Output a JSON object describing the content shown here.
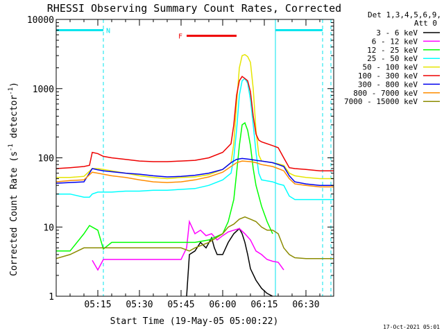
{
  "chart_data": {
    "type": "line",
    "title": "RHESSI Observing Summary Count Rates, Corrected",
    "xlabel": "Start Time (19-May-05 05:00:22)",
    "ylabel": "Corrected Count Rate (s",
    "ylabel_sup": "-1",
    "ylabel_mid": " detector",
    "ylabel_end": ")",
    "y_scale": "log",
    "ylim": [
      1,
      10000
    ],
    "xlim_minutes": [
      0,
      100
    ],
    "y_ticks": [
      1,
      10,
      100,
      1000,
      10000
    ],
    "y_tick_labels": [
      "1",
      "10",
      "100",
      "1000",
      "10000"
    ],
    "x_ticks_minutes": [
      15,
      30,
      45,
      60,
      75,
      90
    ],
    "x_tick_labels": [
      "05:15",
      "05:30",
      "05:45",
      "06:00",
      "06:15",
      "06:30"
    ],
    "legend_header": [
      "Det 1,3,4,5,6,9,",
      "Att 0"
    ],
    "legend_position": "right, outside plot",
    "footer_timestamp": "17-Oct-2021 05:01",
    "flags": [
      {
        "label": "N",
        "start_min": 0,
        "end_min": 17,
        "color": "#00e5ee",
        "y_value": 7000
      },
      {
        "label": "",
        "start_min": 79,
        "end_min": 96,
        "color": "#00e5ee",
        "y_value": 7000
      },
      {
        "label": "F",
        "start_min": 47,
        "end_min": 65,
        "color": "#ee0000",
        "y_value": 5800
      }
    ],
    "vlines_dashed_minutes": [
      17,
      96
    ],
    "vlines_solid_minutes": [
      79
    ],
    "series": [
      {
        "name": "3 - 6 keV",
        "color": "#000000",
        "x": [
          47,
          48,
          50,
          52,
          54,
          56,
          57,
          58,
          60,
          62,
          64,
          66,
          67,
          68,
          69,
          70,
          72,
          74,
          76,
          78
        ],
        "y": [
          1,
          4,
          4.5,
          6,
          5,
          7,
          5,
          4,
          4,
          6,
          8,
          9.5,
          8,
          6,
          4,
          2.5,
          1.7,
          1.3,
          1.1,
          1
        ]
      },
      {
        "name": "6 - 12 keV",
        "color": "#ff00ff",
        "x": [
          13,
          15,
          17,
          20,
          25,
          30,
          35,
          40,
          45,
          47,
          48,
          50,
          52,
          54,
          56,
          58,
          60,
          62,
          64,
          66,
          68,
          70,
          72,
          74,
          76,
          78,
          80,
          82
        ],
        "y": [
          3.3,
          2.4,
          3.4,
          3.4,
          3.4,
          3.4,
          3.4,
          3.4,
          3.4,
          5,
          12,
          8,
          9,
          7.5,
          8,
          6.5,
          7.5,
          8.5,
          9,
          9.5,
          8,
          6.5,
          4.5,
          4,
          3.4,
          3.2,
          3.1,
          2.4
        ]
      },
      {
        "name": "12 - 25 keV",
        "color": "#00ff00",
        "x": [
          0,
          5,
          10,
          12,
          15,
          17,
          20,
          25,
          30,
          35,
          40,
          45,
          48,
          50,
          55,
          60,
          62,
          64,
          65,
          66,
          67,
          68,
          69,
          70,
          71,
          72,
          74,
          76,
          78
        ],
        "y": [
          4.5,
          4.5,
          8,
          10.5,
          9,
          4.8,
          6,
          6,
          6,
          6,
          6,
          6,
          6,
          6,
          6.5,
          8,
          12,
          25,
          60,
          150,
          300,
          320,
          250,
          150,
          70,
          40,
          20,
          12,
          8
        ]
      },
      {
        "name": "25 - 50 keV",
        "color": "#00ffff",
        "x": [
          0,
          5,
          10,
          12,
          13,
          15,
          17,
          20,
          25,
          30,
          35,
          40,
          45,
          50,
          55,
          60,
          63,
          64,
          65,
          66,
          67,
          68,
          69,
          70,
          71,
          72,
          73,
          74,
          78,
          80,
          82,
          84,
          86,
          90,
          95,
          100
        ],
        "y": [
          30,
          30,
          27,
          27,
          30,
          32,
          32,
          32,
          33,
          33,
          34,
          34,
          35,
          36,
          40,
          48,
          60,
          100,
          250,
          800,
          1300,
          1400,
          1200,
          700,
          300,
          120,
          60,
          48,
          45,
          42,
          40,
          28,
          25,
          25,
          25,
          25
        ]
      },
      {
        "name": "50 - 100 keV",
        "color": "#e5e500",
        "x": [
          0,
          5,
          10,
          13,
          15,
          17,
          20,
          25,
          30,
          35,
          40,
          45,
          50,
          55,
          60,
          63,
          64,
          65,
          66,
          67,
          68,
          69,
          70,
          71,
          72,
          73,
          74,
          78,
          80,
          82,
          84,
          86,
          90,
          95,
          100
        ],
        "y": [
          52,
          52,
          54,
          70,
          70,
          68,
          65,
          60,
          55,
          52,
          50,
          52,
          53,
          57,
          68,
          85,
          160,
          600,
          2000,
          3000,
          3100,
          2900,
          2400,
          1000,
          250,
          110,
          90,
          85,
          82,
          78,
          60,
          55,
          52,
          50,
          50
        ]
      },
      {
        "name": "100 - 300 keV",
        "color": "#ee0000",
        "x": [
          0,
          5,
          10,
          12,
          13,
          15,
          17,
          20,
          25,
          30,
          35,
          40,
          45,
          50,
          55,
          60,
          63,
          64,
          65,
          66,
          67,
          68,
          69,
          70,
          71,
          72,
          73,
          74,
          78,
          80,
          82,
          84,
          86,
          90,
          95,
          100
        ],
        "y": [
          70,
          72,
          75,
          78,
          120,
          115,
          105,
          100,
          95,
          90,
          88,
          88,
          90,
          92,
          100,
          120,
          160,
          300,
          800,
          1300,
          1500,
          1400,
          1300,
          900,
          400,
          220,
          180,
          170,
          150,
          140,
          100,
          72,
          70,
          68,
          65,
          65
        ]
      },
      {
        "name": "300 - 800 keV",
        "color": "#0000ee",
        "x": [
          0,
          5,
          10,
          13,
          15,
          17,
          20,
          25,
          30,
          35,
          40,
          45,
          50,
          55,
          60,
          63,
          65,
          67,
          70,
          72,
          74,
          78,
          80,
          82,
          84,
          86,
          90,
          95,
          100
        ],
        "y": [
          43,
          44,
          45,
          70,
          67,
          65,
          63,
          60,
          58,
          55,
          53,
          54,
          56,
          60,
          68,
          85,
          95,
          98,
          95,
          92,
          90,
          85,
          80,
          75,
          55,
          45,
          42,
          40,
          40
        ]
      },
      {
        "name": "800 - 7000 keV",
        "color": "#ff8c00",
        "x": [
          0,
          5,
          10,
          13,
          15,
          17,
          20,
          25,
          30,
          35,
          40,
          45,
          50,
          55,
          60,
          63,
          65,
          67,
          70,
          72,
          74,
          78,
          80,
          82,
          84,
          86,
          90,
          95,
          100
        ],
        "y": [
          45,
          47,
          48,
          62,
          60,
          58,
          55,
          52,
          48,
          45,
          44,
          45,
          48,
          53,
          62,
          75,
          85,
          90,
          88,
          85,
          80,
          75,
          70,
          65,
          50,
          42,
          40,
          38,
          38
        ]
      },
      {
        "name": "7000 - 15000 keV",
        "color": "#8b8b00",
        "x": [
          0,
          5,
          10,
          15,
          17,
          20,
          25,
          30,
          35,
          40,
          45,
          48,
          50,
          55,
          60,
          62,
          64,
          66,
          68,
          70,
          72,
          74,
          76,
          78,
          80,
          82,
          84,
          86,
          90,
          95,
          100
        ],
        "y": [
          3.5,
          4,
          5,
          5,
          5,
          5,
          5,
          5,
          5,
          5,
          5,
          4.5,
          5,
          6,
          8,
          10,
          11,
          13,
          14,
          13,
          12,
          10,
          9,
          9,
          8,
          5,
          4,
          3.6,
          3.5,
          3.5,
          3.5
        ]
      }
    ]
  }
}
